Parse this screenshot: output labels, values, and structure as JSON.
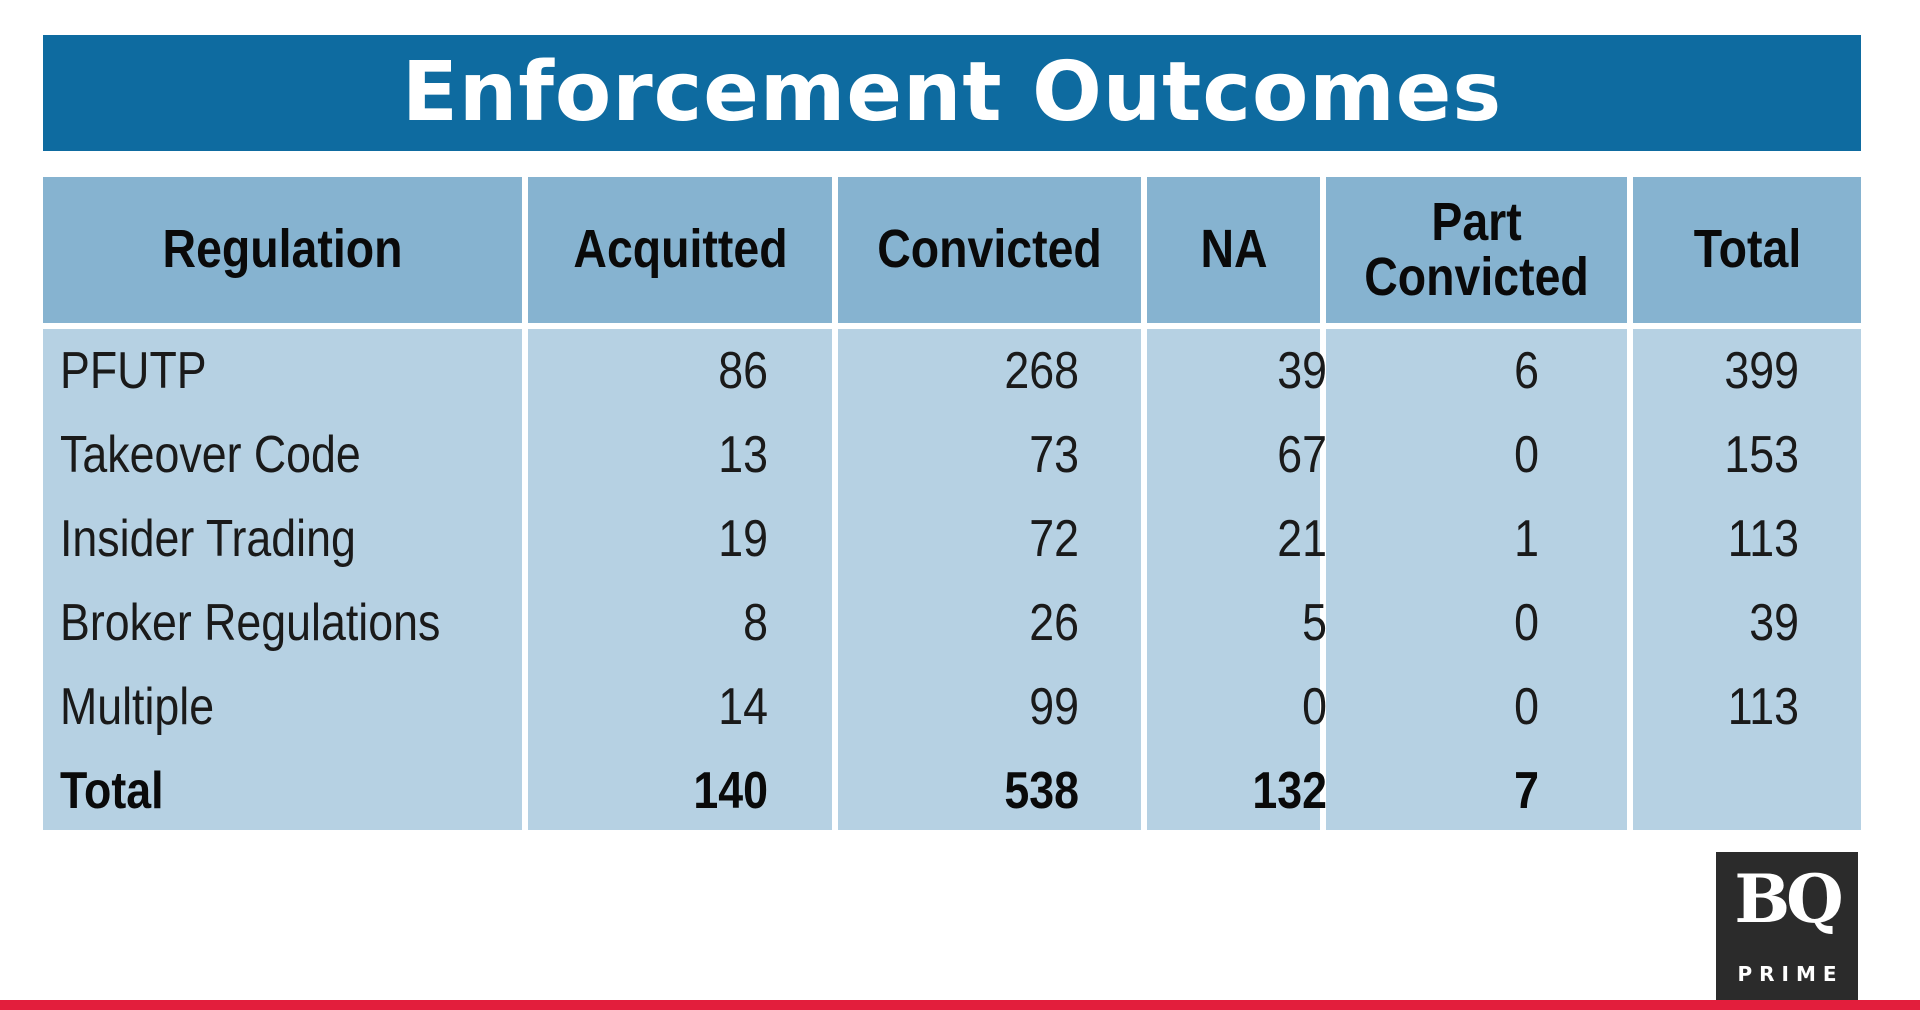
{
  "chart_data": {
    "type": "table",
    "title": "Enforcement Outcomes",
    "columns": [
      "Regulation",
      "Acquitted",
      "Convicted",
      "NA",
      "Part\nConvicted",
      "Total"
    ],
    "rows": [
      {
        "label": "PFUTP",
        "values": [
          "86",
          "268",
          "39",
          "6",
          "399"
        ]
      },
      {
        "label": "Takeover Code",
        "values": [
          "13",
          "73",
          "67",
          "0",
          "153"
        ]
      },
      {
        "label": "Insider Trading",
        "values": [
          "19",
          "72",
          "21",
          "1",
          "113"
        ]
      },
      {
        "label": "Broker Regulations",
        "values": [
          "8",
          "26",
          "5",
          "0",
          "39"
        ]
      },
      {
        "label": "Multiple",
        "values": [
          "14",
          "99",
          "0",
          "0",
          "113"
        ]
      }
    ],
    "total_row": {
      "label": "Total",
      "values": [
        "140",
        "538",
        "132",
        "7",
        ""
      ]
    }
  },
  "logo": {
    "letters": "BQ",
    "subtitle": "PRIME"
  },
  "colors": {
    "title_bg": "#0e6ba0",
    "header_bg": "#86b3d0",
    "body_bg": "#b6d1e3",
    "accent_bar": "#e31e3c",
    "logo_bg": "#2b2b2b"
  }
}
